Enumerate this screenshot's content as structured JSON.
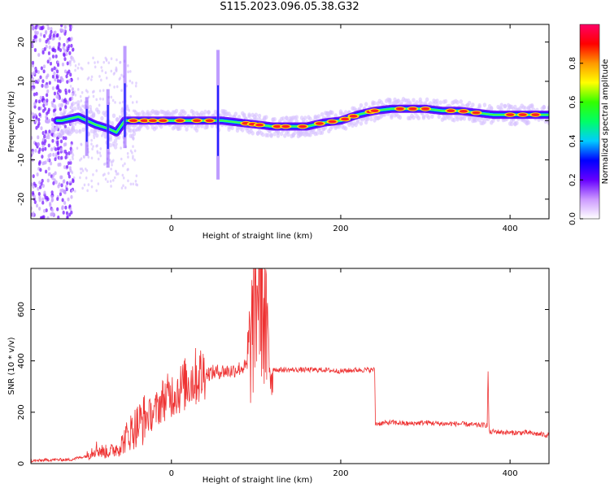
{
  "title": "S115.2023.096.05.38.G32",
  "chart_data": [
    {
      "type": "heatmap",
      "xlabel": "Height of straight line (km)",
      "ylabel": "Frequency (Hz)",
      "xlim": [
        -166,
        446
      ],
      "ylim": [
        -25,
        24.5
      ],
      "x_ticks": [
        0,
        200,
        400
      ],
      "y_ticks": [
        -20,
        -10,
        0,
        10,
        20
      ],
      "ridge": {
        "x": [
          -130,
          -110,
          -90,
          -75,
          -65,
          -55,
          -40,
          -20,
          0,
          20,
          40,
          55,
          60,
          80,
          100,
          120,
          140,
          160,
          180,
          200,
          220,
          240,
          260,
          280,
          300,
          320,
          340,
          360,
          380,
          400,
          420,
          446
        ],
        "y": [
          0,
          1,
          -1,
          -2,
          -3,
          0,
          0,
          0,
          0,
          0,
          0,
          0,
          0,
          -0.5,
          -1,
          -1.5,
          -1.5,
          -1.5,
          -0.5,
          0,
          1.5,
          2.5,
          3,
          3,
          3,
          2.5,
          2.5,
          2,
          1.5,
          1.5,
          1.5,
          1.5
        ]
      },
      "colorbar": {
        "label": "Normalized spectral amplitude",
        "range": [
          0,
          1
        ],
        "ticks": [
          "0.0",
          "0.2",
          "0.4",
          "0.6",
          "0.8"
        ],
        "tick_values": [
          0,
          0.2,
          0.4,
          0.6,
          0.8
        ],
        "colors": [
          "#ffffff",
          "#cc99ff",
          "#6600ff",
          "#0000ff",
          "#00ccff",
          "#00ff66",
          "#33ff00",
          "#ffff00",
          "#ff9900",
          "#ff0000",
          "#ff0066"
        ]
      }
    },
    {
      "type": "line",
      "xlabel": "Height of straight line (km)",
      "ylabel": "SNR (10 * v/v)",
      "xlim": [
        -166,
        446
      ],
      "ylim": [
        0,
        760
      ],
      "x_ticks": [
        0,
        200,
        400
      ],
      "y_ticks": [
        0,
        200,
        400,
        600
      ],
      "color": "#ee3333",
      "series": [
        {
          "x": [
            -166,
            -140,
            -120,
            -100,
            -90,
            -80,
            -70,
            -60,
            -50,
            -40,
            -30,
            -20,
            -10,
            0,
            10,
            20,
            30,
            40,
            50,
            60,
            70,
            80,
            90,
            95,
            100,
            105,
            110,
            115,
            120,
            125,
            130,
            140,
            160,
            180,
            200,
            220,
            240,
            241,
            260,
            280,
            300,
            320,
            340,
            360,
            373,
            374,
            375,
            376,
            380,
            400,
            420,
            446
          ],
          "y": [
            10,
            15,
            15,
            30,
            60,
            45,
            50,
            70,
            120,
            150,
            180,
            200,
            250,
            270,
            290,
            320,
            340,
            350,
            355,
            360,
            360,
            370,
            380,
            500,
            650,
            760,
            550,
            400,
            370,
            365,
            365,
            365,
            365,
            365,
            360,
            365,
            365,
            155,
            160,
            155,
            160,
            155,
            155,
            150,
            150,
            360,
            150,
            120,
            125,
            120,
            120,
            110
          ]
        }
      ]
    }
  ]
}
